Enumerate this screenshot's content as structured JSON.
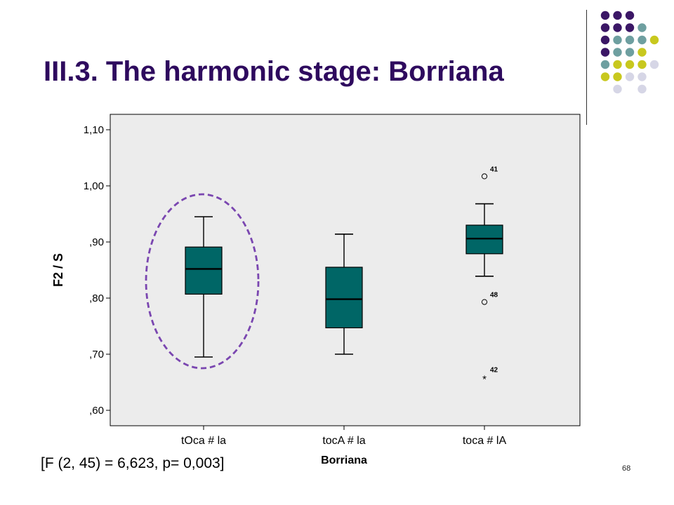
{
  "slide": {
    "title": "III.3. The harmonic stage: Borriana",
    "stats_text": "[F (2, 45) = 6,623, p= 0,003]",
    "page_number": "68"
  },
  "colors": {
    "title": "#2e0a5e",
    "box_fill": "#006666",
    "ellipse": "#7a46b0",
    "plot_bg": "#ececec",
    "deco_dots": [
      "#3b1766",
      "#6e9fa0",
      "#c8c81e",
      "#d6d6e6"
    ]
  },
  "chart_data": {
    "type": "boxplot",
    "title": "",
    "xlabel": "Borriana",
    "ylabel": "F2 / S",
    "ylim": [
      0.6,
      1.1
    ],
    "yticks": [
      0.6,
      0.7,
      0.8,
      0.9,
      1.0,
      1.1
    ],
    "ytick_labels": [
      ",60",
      ",70",
      ",80",
      ",90",
      "1,00",
      "1,10"
    ],
    "grid": false,
    "categories": [
      "tOca # la",
      "tocA # la",
      "toca # lA"
    ],
    "boxes": [
      {
        "category": "tOca # la",
        "whisker_low": 0.695,
        "q1": 0.807,
        "median": 0.852,
        "q3": 0.891,
        "whisker_high": 0.945,
        "outliers": [],
        "extremes": []
      },
      {
        "category": "tocA # la",
        "whisker_low": 0.7,
        "q1": 0.747,
        "median": 0.798,
        "q3": 0.855,
        "whisker_high": 0.914,
        "outliers": [],
        "extremes": []
      },
      {
        "category": "toca # lA",
        "whisker_low": 0.839,
        "q1": 0.879,
        "median": 0.906,
        "q3": 0.93,
        "whisker_high": 0.968,
        "outliers": [
          {
            "value": 1.017,
            "label": "41"
          },
          {
            "value": 0.793,
            "label": "48"
          }
        ],
        "extremes": [
          {
            "value": 0.657,
            "label": "42"
          }
        ]
      }
    ],
    "highlighted_category": "tOca # la"
  }
}
